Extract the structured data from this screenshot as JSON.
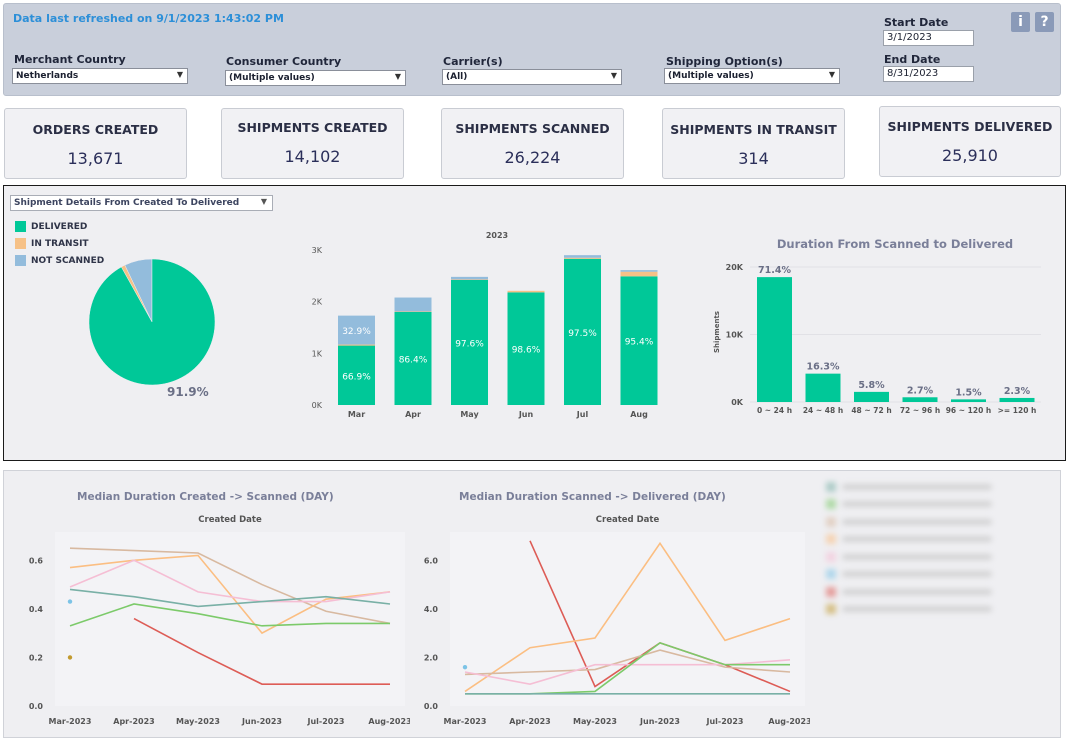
{
  "header": {
    "refresh_text": "Data last refreshed on 9/1/2023 1:43:02 PM",
    "filters": {
      "merchant_country": {
        "label": "Merchant Country",
        "value": "Netherlands"
      },
      "consumer_country": {
        "label": "Consumer Country",
        "value": "(Multiple values)"
      },
      "carriers": {
        "label": "Carrier(s)",
        "value": "(All)"
      },
      "shipping_option": {
        "label": "Shipping Option(s)",
        "value": "(Multiple values)"
      }
    },
    "start_date": {
      "label": "Start Date",
      "value": "3/1/2023"
    },
    "end_date": {
      "label": "End Date",
      "value": "8/31/2023"
    },
    "info_glyph": "i",
    "help_glyph": "?"
  },
  "kpis": [
    {
      "title": "ORDERS CREATED",
      "value": "13,671"
    },
    {
      "title": "SHIPMENTS CREATED",
      "value": "14,102"
    },
    {
      "title": "SHIPMENTS SCANNED",
      "value": "26,224"
    },
    {
      "title": "SHIPMENTS IN TRANSIT",
      "value": "314"
    },
    {
      "title": "SHIPMENTS DELIVERED",
      "value": "25,910"
    }
  ],
  "details": {
    "selector_value": "Shipment Details From Created To Delivered",
    "legend": [
      {
        "label": "DELIVERED",
        "color": "#00c898"
      },
      {
        "label": "IN TRANSIT",
        "color": "#f6c187"
      },
      {
        "label": "NOT SCANNED",
        "color": "#93bcdc"
      }
    ]
  },
  "chart_data": [
    {
      "type": "pie",
      "slices": [
        {
          "label": "DELIVERED",
          "value": 91.9,
          "color": "#00c898"
        },
        {
          "label": "IN TRANSIT",
          "value": 1.0,
          "color": "#f6c187"
        },
        {
          "label": "NOT SCANNED",
          "value": 7.1,
          "color": "#93bcdc"
        }
      ],
      "label_text": "91.9%"
    },
    {
      "type": "bar",
      "title": "2023",
      "categories": [
        "Mar",
        "Apr",
        "May",
        "Jun",
        "Jul",
        "Aug"
      ],
      "series": [
        {
          "name": "DELIVERED",
          "color": "#00c898",
          "values": [
            1150,
            1800,
            2420,
            2180,
            2830,
            2490
          ]
        },
        {
          "name": "IN TRANSIT",
          "color": "#f6c187",
          "values": [
            20,
            10,
            10,
            30,
            20,
            90
          ]
        },
        {
          "name": "NOT SCANNED",
          "color": "#93bcdc",
          "values": [
            560,
            270,
            50,
            0,
            50,
            30
          ]
        }
      ],
      "bar_labels": [
        {
          "category": "Mar",
          "delivered": "66.9%",
          "not_scanned": "32.9%"
        },
        {
          "category": "Apr",
          "delivered": "86.4%"
        },
        {
          "category": "May",
          "delivered": "97.6%"
        },
        {
          "category": "Jun",
          "delivered": "98.6%"
        },
        {
          "category": "Jul",
          "delivered": "97.5%"
        },
        {
          "category": "Aug",
          "delivered": "95.4%"
        }
      ],
      "yticks": [
        "0K",
        "1K",
        "2K",
        "3K"
      ],
      "ylim": [
        0,
        3000
      ]
    },
    {
      "type": "bar",
      "title": "Duration From Scanned to Delivered",
      "ylabel": "Shipments",
      "categories": [
        "0 ~ 24 h",
        "24 ~ 48 h",
        "48 ~ 72 h",
        "72 ~ 96 h",
        "96 ~ 120 h",
        ">= 120 h"
      ],
      "values": [
        18500,
        4200,
        1500,
        700,
        390,
        600
      ],
      "labels": [
        "71.4%",
        "16.3%",
        "5.8%",
        "2.7%",
        "1.5%",
        "2.3%"
      ],
      "yticks": [
        "0K",
        "10K",
        "20K"
      ],
      "ylim": [
        0,
        20000
      ],
      "color": "#00c898"
    },
    {
      "type": "line",
      "title": "Median Duration Created -> Scanned (DAY)",
      "subtitle": "Created Date",
      "categories": [
        "Mar-2023",
        "Apr-2023",
        "May-2023",
        "Jun-2023",
        "Jul-2023",
        "Aug-2023"
      ],
      "yticks": [
        "0.0",
        "0.2",
        "0.4",
        "0.6"
      ],
      "ylim": [
        0,
        0.7
      ],
      "series": [
        {
          "color": "#d8b9a0",
          "values": [
            0.65,
            0.64,
            0.63,
            0.5,
            0.39,
            0.34
          ]
        },
        {
          "color": "#fbbe82",
          "values": [
            0.57,
            0.6,
            0.62,
            0.3,
            0.44,
            0.47
          ]
        },
        {
          "color": "#f5bed4",
          "values": [
            0.49,
            0.6,
            0.47,
            0.43,
            0.43,
            0.47
          ]
        },
        {
          "color": "#79b0a6",
          "values": [
            0.48,
            0.45,
            0.41,
            0.43,
            0.45,
            0.42
          ]
        },
        {
          "color": "#7cca6a",
          "values": [
            0.33,
            0.42,
            0.38,
            0.33,
            0.34,
            0.34
          ]
        },
        {
          "color": "#dd5c56",
          "values": [
            null,
            0.36,
            0.22,
            0.09,
            0.09,
            0.09
          ]
        }
      ],
      "points": [
        {
          "color": "#7cc3e6",
          "x": "Mar-2023",
          "y": 0.43
        },
        {
          "color": "#c29a2e",
          "x": "Mar-2023",
          "y": 0.2
        }
      ]
    },
    {
      "type": "line",
      "title": "Median Duration Scanned -> Delivered (DAY)",
      "subtitle": "Created Date",
      "categories": [
        "Mar-2023",
        "Apr-2023",
        "May-2023",
        "Jun-2023",
        "Jul-2023",
        "Aug-2023"
      ],
      "yticks": [
        "0.0",
        "2.0",
        "4.0",
        "6.0"
      ],
      "ylim": [
        0,
        7
      ],
      "series": [
        {
          "color": "#dd5c56",
          "values": [
            null,
            6.8,
            0.8,
            2.6,
            1.7,
            0.6
          ]
        },
        {
          "color": "#fbbe82",
          "values": [
            0.6,
            2.4,
            2.8,
            6.7,
            2.7,
            3.6
          ]
        },
        {
          "color": "#d8b9a0",
          "values": [
            1.3,
            1.4,
            1.5,
            2.3,
            1.6,
            1.4
          ]
        },
        {
          "color": "#f5bed4",
          "values": [
            1.4,
            0.9,
            1.7,
            1.7,
            1.7,
            1.9
          ]
        },
        {
          "color": "#7cca6a",
          "values": [
            0.5,
            0.5,
            0.6,
            2.6,
            1.7,
            1.7
          ]
        },
        {
          "color": "#79b0a6",
          "values": [
            0.5,
            0.5,
            0.5,
            0.5,
            0.5,
            0.5
          ]
        }
      ],
      "points": [
        {
          "color": "#7cc3e6",
          "x": "Mar-2023",
          "y": 1.6
        }
      ]
    }
  ],
  "legend_blurred": {
    "colors": [
      "#79b0a6",
      "#7cca6a",
      "#d8b9a0",
      "#fbbe82",
      "#f5bed4",
      "#7cc3e6",
      "#dd5c56",
      "#c29a2e"
    ]
  }
}
